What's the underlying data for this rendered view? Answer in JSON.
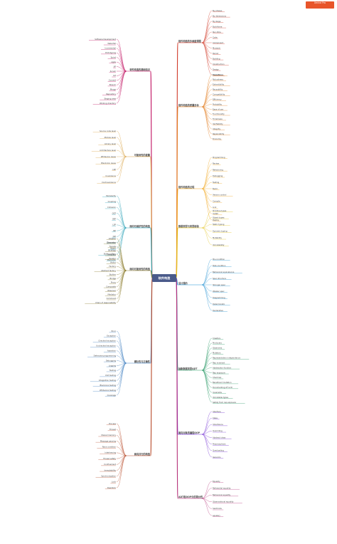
{
  "root": {
    "label": "软件构造"
  },
  "badge": {
    "line1": "Xmind Pro",
    "line2": ""
  },
  "colors": {
    "root": "#4a5a8a",
    "b1": "#d13b2a",
    "b2": "#e27d1f",
    "b3": "#f1a51a",
    "b4": "#e3c21a",
    "b5": "#1f8fd1",
    "b6": "#2a9a66",
    "b7": "#6f2ad1",
    "b8": "#b6327a",
    "b9": "#c01060",
    "b10": "#d9a040",
    "b11": "#2aa0b6",
    "b12": "#8a7a2a",
    "b13": "#4080c0",
    "b14": "#b84a2a"
  },
  "right_branches": [
    {
      "label": "软件构造的多维度视图",
      "children": [
        "By phases",
        "By dimensions",
        "By stage",
        "Build-time",
        "Run-time",
        "Code",
        "Component",
        "Moment",
        "Period",
        "Building",
        "Construction",
        "Design",
        "Execution"
      ]
    },
    {
      "label": "软件构造的质量目标",
      "children": [
        "Correctness",
        "Robustness",
        "Extendibility",
        "Reusability",
        "Compatibility",
        "Efficiency",
        "Portability",
        "Ease of use",
        "Functionality",
        "Timeliness",
        "Verifiability",
        "Integrity",
        "Repairability",
        "Economy"
      ]
    },
    {
      "label": "软件构造的过程",
      "children": [
        "Programming",
        "Review",
        "Refactoring",
        "Debugging",
        "Testing",
        "Build",
        "Version control",
        "Compile",
        "Link",
        "Install",
        "Deploy"
      ]
    },
    {
      "label": "数据类型与类型检验",
      "children": [
        "Primitive types",
        "Object types",
        "Static typing",
        "Dynamic typing",
        "Mutability",
        "Immutability"
      ]
    },
    {
      "label": "设计规约",
      "children": [
        "Pre-condition",
        "Post-condition",
        "Behavioral equivalence",
        "Spec structure",
        "Stronger spec",
        "Weaker spec",
        "Diagramming",
        "Deterministic",
        "Declarative"
      ]
    },
    {
      "label": "抽象数据类型ADT",
      "children": [
        "Creators",
        "Producers",
        "Observers",
        "Mutators",
        "Representation independence",
        "Rep invariant",
        "Abstraction function",
        "Rep exposure",
        "Checkrep",
        "Beneficent mutation",
        "Documenting AF & RI",
        "Invariants",
        "Immutable types",
        "Safety from rep exposure"
      ]
    },
    {
      "label": "面向对象的编程OOP",
      "children": [
        "Interface",
        "Class",
        "Inheritance",
        "Overriding",
        "Abstract class",
        "Polymorphism",
        "Overloading",
        "Generics"
      ]
    },
    {
      "label": "ADT和OOP中的等价性",
      "children": [
        "Equality",
        "Referential equality",
        "Behavioral equality",
        "Observational equality",
        "hashCode",
        "equals()"
      ]
    }
  ],
  "left_branches": [
    {
      "label": "软件构造的基础知识",
      "children": [
        "Software Development",
        "Waterfall",
        "Incremental",
        "Prototyping",
        "Spiral",
        "Agile",
        "XP",
        "Scrum",
        "Git",
        "Commit",
        "Branch",
        "Merge",
        "Repository",
        "Staging area",
        "Working directory"
      ]
    },
    {
      "label": "可复用性的度量",
      "children": [
        "Source code level",
        "Module level",
        "Library level",
        "Architecture level",
        "White-box reuse",
        "Black-box reuse",
        "LSP",
        "Covariance",
        "Contravariance"
      ]
    },
    {
      "label": "面向可维护性的构造",
      "children": [
        "Modularity",
        "Coupling",
        "Cohesion",
        "OCP",
        "SRP",
        "LSP",
        "ISP",
        "DIP",
        "Grammar",
        "Regex",
        "State pattern",
        "Memento"
      ]
    },
    {
      "label": "面向可复用性的构造",
      "children": [
        "Adapter",
        "Decorator",
        "Facade",
        "Strategy",
        "Template",
        "Iterator",
        "Visitor",
        "Factory",
        "Abstract factory",
        "Builder",
        "Bridge",
        "Proxy",
        "Composite",
        "Observer",
        "Mediator",
        "Command",
        "Chain of responsibility"
      ]
    },
    {
      "label": "健壮性与正确性",
      "children": [
        "Error",
        "Exception",
        "Checked exception",
        "Unchecked exception",
        "Assertion",
        "Defensive programming",
        "Debugging",
        "Logging",
        "Testing",
        "Unit testing",
        "Integration testing",
        "Black-box testing",
        "White-box testing",
        "Coverage"
      ]
    },
    {
      "label": "面向并行的构造",
      "children": [
        "Process",
        "Thread",
        "Shared memory",
        "Message passing",
        "Race condition",
        "Interleaving",
        "Thread safety",
        "Confinement",
        "Immutability",
        "Synchronization",
        "Lock",
        "Deadlock"
      ]
    }
  ]
}
